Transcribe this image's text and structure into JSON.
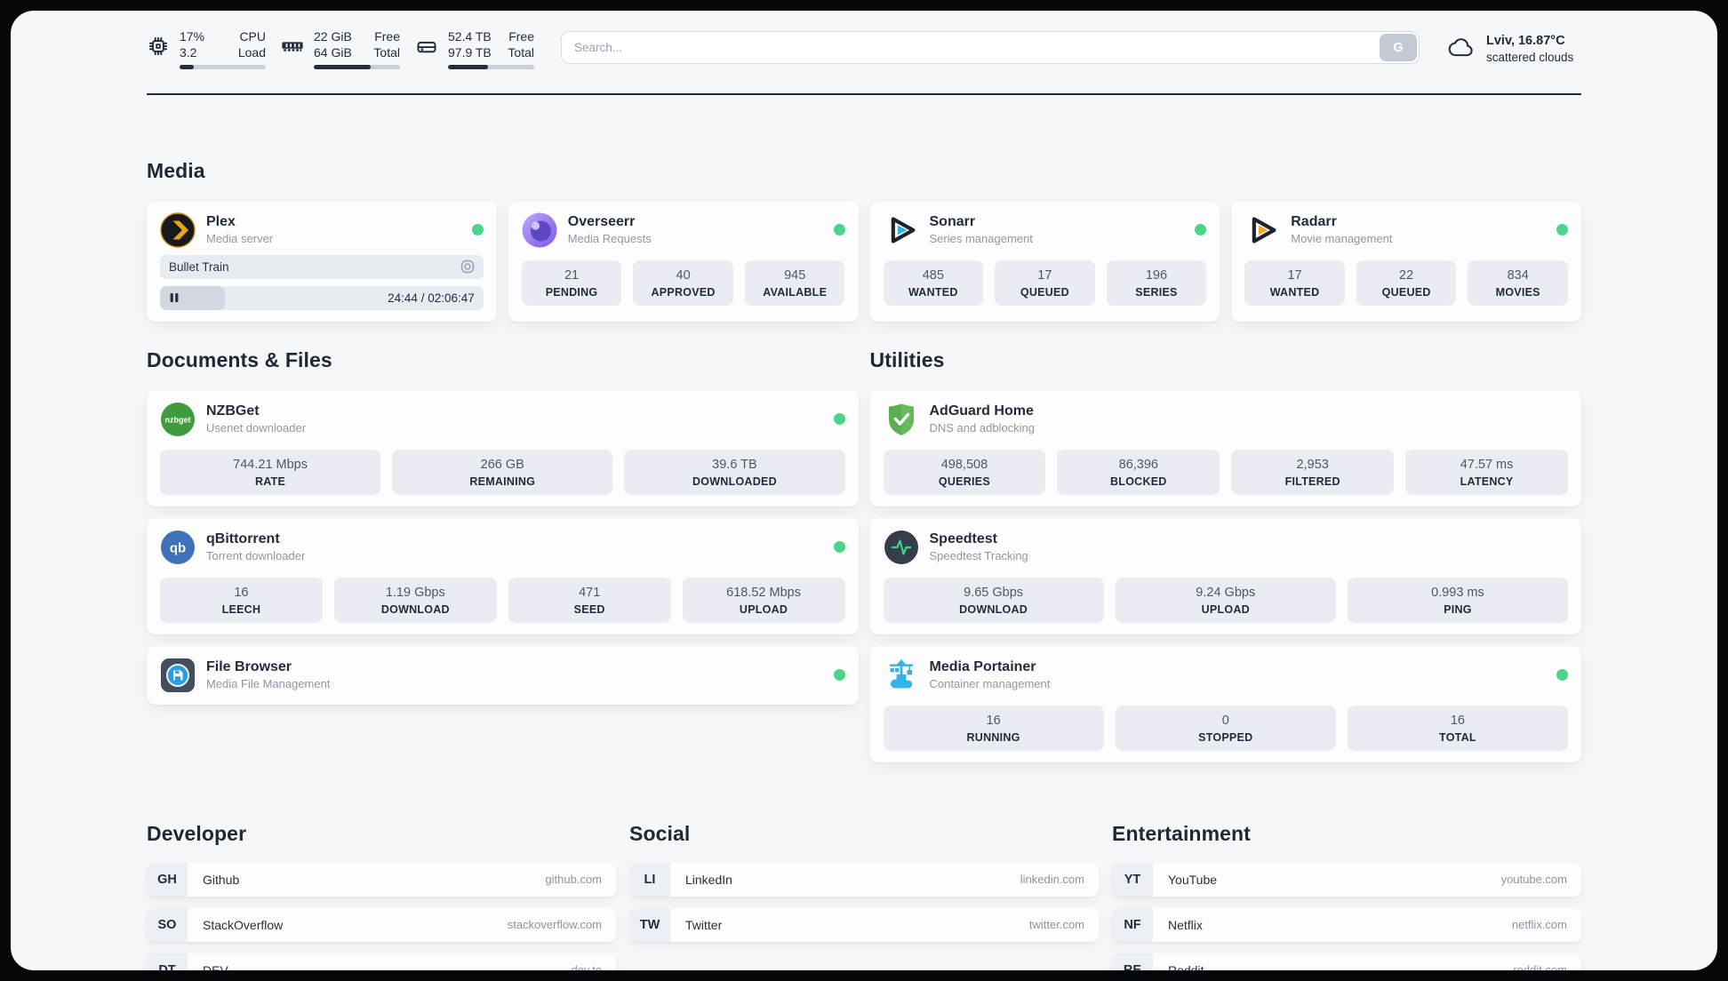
{
  "colors": {
    "status_online": "#4cd48a",
    "accent_dark": "#222c3c"
  },
  "system": {
    "cpu": {
      "value1": "17%",
      "value2": "3.2",
      "label1": "CPU",
      "label2": "Load",
      "progress": 17
    },
    "memory": {
      "value1": "22 GiB",
      "value2": "64 GiB",
      "label1": "Free",
      "label2": "Total",
      "progress": 66
    },
    "disk": {
      "value1": "52.4 TB",
      "value2": "97.9 TB",
      "label1": "Free",
      "label2": "Total",
      "progress": 46
    }
  },
  "search": {
    "placeholder": "Search...",
    "button_label": "G"
  },
  "weather": {
    "location": "Lviv, 16.87°C",
    "condition": "scattered clouds"
  },
  "sections": {
    "media": "Media",
    "documents": "Documents & Files",
    "utilities": "Utilities",
    "developer": "Developer",
    "social": "Social",
    "entertainment": "Entertainment"
  },
  "apps": {
    "plex": {
      "name": "Plex",
      "desc": "Media server",
      "player": {
        "title": "Bullet Train",
        "time": "24:44 / 02:06:47",
        "progress": 20
      }
    },
    "overseerr": {
      "name": "Overseerr",
      "desc": "Media Requests",
      "stats": [
        {
          "value": "21",
          "label": "PENDING"
        },
        {
          "value": "40",
          "label": "APPROVED"
        },
        {
          "value": "945",
          "label": "AVAILABLE"
        }
      ]
    },
    "sonarr": {
      "name": "Sonarr",
      "desc": "Series management",
      "stats": [
        {
          "value": "485",
          "label": "WANTED"
        },
        {
          "value": "17",
          "label": "QUEUED"
        },
        {
          "value": "196",
          "label": "SERIES"
        }
      ]
    },
    "radarr": {
      "name": "Radarr",
      "desc": "Movie management",
      "stats": [
        {
          "value": "17",
          "label": "WANTED"
        },
        {
          "value": "22",
          "label": "QUEUED"
        },
        {
          "value": "834",
          "label": "MOVIES"
        }
      ]
    },
    "nzbget": {
      "name": "NZBGet",
      "desc": "Usenet downloader",
      "stats": [
        {
          "value": "744.21 Mbps",
          "label": "RATE"
        },
        {
          "value": "266 GB",
          "label": "REMAINING"
        },
        {
          "value": "39.6 TB",
          "label": "DOWNLOADED"
        }
      ]
    },
    "qbittorrent": {
      "name": "qBittorrent",
      "desc": "Torrent downloader",
      "stats": [
        {
          "value": "16",
          "label": "LEECH"
        },
        {
          "value": "1.19 Gbps",
          "label": "DOWNLOAD"
        },
        {
          "value": "471",
          "label": "SEED"
        },
        {
          "value": "618.52 Mbps",
          "label": "UPLOAD"
        }
      ]
    },
    "filebrowser": {
      "name": "File Browser",
      "desc": "Media File Management"
    },
    "adguard": {
      "name": "AdGuard Home",
      "desc": "DNS and adblocking",
      "stats": [
        {
          "value": "498,508",
          "label": "QUERIES"
        },
        {
          "value": "86,396",
          "label": "BLOCKED"
        },
        {
          "value": "2,953",
          "label": "FILTERED"
        },
        {
          "value": "47.57 ms",
          "label": "LATENCY"
        }
      ]
    },
    "speedtest": {
      "name": "Speedtest",
      "desc": "Speedtest Tracking",
      "stats": [
        {
          "value": "9.65 Gbps",
          "label": "DOWNLOAD"
        },
        {
          "value": "9.24 Gbps",
          "label": "UPLOAD"
        },
        {
          "value": "0.993 ms",
          "label": "PING"
        }
      ]
    },
    "portainer": {
      "name": "Media Portainer",
      "desc": "Container management",
      "stats": [
        {
          "value": "16",
          "label": "RUNNING"
        },
        {
          "value": "0",
          "label": "STOPPED"
        },
        {
          "value": "16",
          "label": "TOTAL"
        }
      ]
    }
  },
  "bookmarks": {
    "developer": [
      {
        "abbr": "GH",
        "name": "Github",
        "url": "github.com"
      },
      {
        "abbr": "SO",
        "name": "StackOverflow",
        "url": "stackoverflow.com"
      },
      {
        "abbr": "DT",
        "name": "DEV",
        "url": "dev.to"
      }
    ],
    "social": [
      {
        "abbr": "LI",
        "name": "LinkedIn",
        "url": "linkedin.com"
      },
      {
        "abbr": "TW",
        "name": "Twitter",
        "url": "twitter.com"
      }
    ],
    "entertainment": [
      {
        "abbr": "YT",
        "name": "YouTube",
        "url": "youtube.com"
      },
      {
        "abbr": "NF",
        "name": "Netflix",
        "url": "netflix.com"
      },
      {
        "abbr": "RE",
        "name": "Reddit",
        "url": "reddit.com"
      }
    ]
  }
}
